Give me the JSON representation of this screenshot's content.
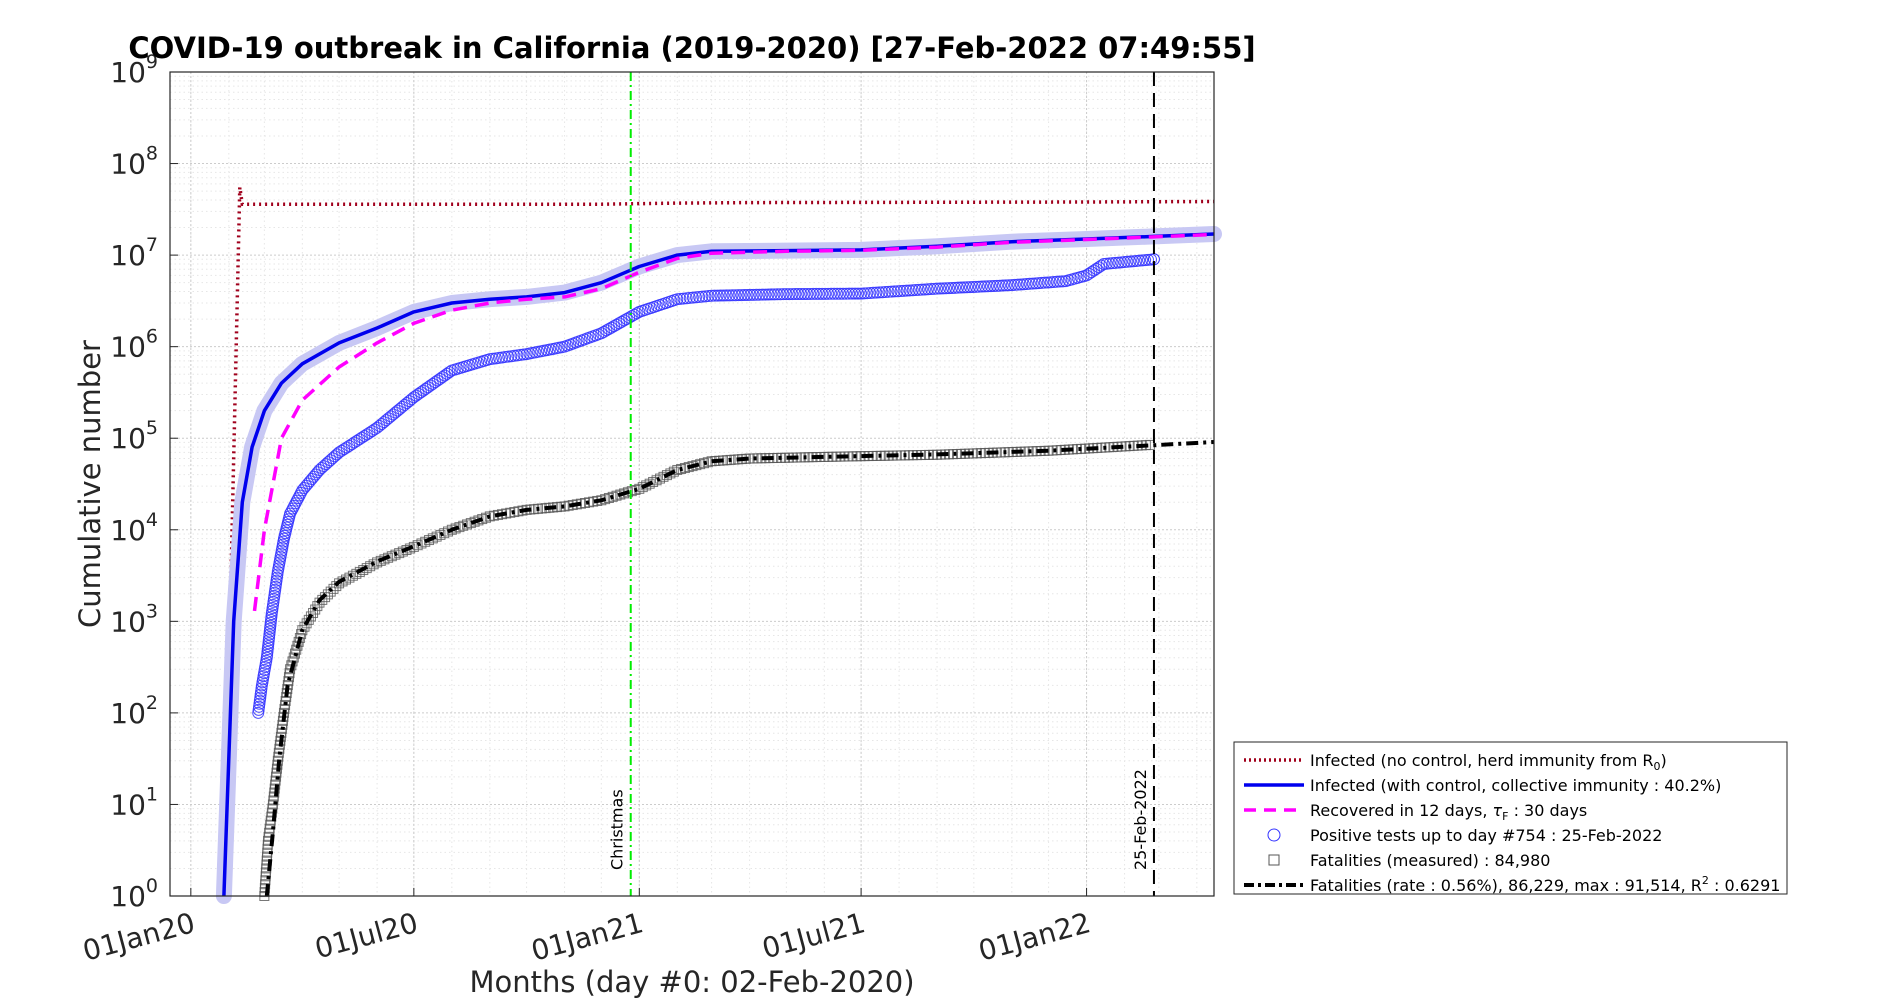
{
  "chart_data": {
    "type": "line",
    "title": "COVID-19 outbreak in California (2019-2020) [27-Feb-2022 07:49:55]",
    "xlabel": "Months (day #0: 02-Feb-2020)",
    "ylabel": "Cumulative number",
    "yscale": "log",
    "ylim": [
      1,
      1000000000
    ],
    "xlim": [
      "2019-12-15",
      "2022-04-15"
    ],
    "x_ticks": [
      {
        "date": "2020-01-01",
        "label": "01Jan20"
      },
      {
        "date": "2020-07-01",
        "label": "01Jul20"
      },
      {
        "date": "2021-01-01",
        "label": "01Jan21"
      },
      {
        "date": "2021-07-01",
        "label": "01Jul21"
      },
      {
        "date": "2022-01-01",
        "label": "01Jan22"
      }
    ],
    "y_ticks": [
      {
        "value": 1,
        "base": "10",
        "exp": "0"
      },
      {
        "value": 10,
        "base": "10",
        "exp": "1"
      },
      {
        "value": 100,
        "base": "10",
        "exp": "2"
      },
      {
        "value": 1000,
        "base": "10",
        "exp": "3"
      },
      {
        "value": 10000,
        "base": "10",
        "exp": "4"
      },
      {
        "value": 100000,
        "base": "10",
        "exp": "5"
      },
      {
        "value": 1000000,
        "base": "10",
        "exp": "6"
      },
      {
        "value": 10000000,
        "base": "10",
        "exp": "7"
      },
      {
        "value": 100000000,
        "base": "10",
        "exp": "8"
      },
      {
        "value": 1000000000,
        "base": "10",
        "exp": "9"
      }
    ],
    "grid": true,
    "legend_position": "bottom-right-outside",
    "vlines": [
      {
        "name": "christmas",
        "date": "2020-12-25",
        "label": "Christmas",
        "color": "#00ee00",
        "style": "dashdot"
      },
      {
        "name": "last-day",
        "date": "2022-02-25",
        "label": "25-Feb-2022",
        "color": "#000000",
        "style": "dashed"
      }
    ],
    "series": [
      {
        "key": "no_control",
        "legend": {
          "pre": "Infected (no control, herd immunity from R",
          "sub": "0",
          "post": ")"
        },
        "color": "#a0001c",
        "style": "dotted",
        "points": [
          [
            "2020-02-02",
            1000
          ],
          [
            "2020-02-10",
            55000000
          ],
          [
            "2020-02-12",
            36000000
          ],
          [
            "2020-12-01",
            36000000
          ],
          [
            "2021-02-01",
            37000000
          ],
          [
            "2021-04-01",
            37500000
          ],
          [
            "2022-01-01",
            38000000
          ],
          [
            "2022-04-15",
            38500000
          ]
        ]
      },
      {
        "key": "with_control",
        "legend": {
          "pre": "Infected (with control, collective immunity : 40.2%)"
        },
        "color": "#0000ee",
        "style": "solid",
        "points": [
          [
            "2020-01-28",
            1
          ],
          [
            "2020-02-05",
            1000
          ],
          [
            "2020-02-12",
            20000
          ],
          [
            "2020-02-20",
            80000
          ],
          [
            "2020-03-01",
            200000
          ],
          [
            "2020-03-15",
            400000
          ],
          [
            "2020-04-01",
            650000
          ],
          [
            "2020-05-01",
            1100000
          ],
          [
            "2020-06-01",
            1600000
          ],
          [
            "2020-07-01",
            2400000
          ],
          [
            "2020-08-01",
            3000000
          ],
          [
            "2020-09-01",
            3300000
          ],
          [
            "2020-10-01",
            3500000
          ],
          [
            "2020-11-01",
            3900000
          ],
          [
            "2020-12-01",
            5000000
          ],
          [
            "2021-01-01",
            7500000
          ],
          [
            "2021-02-01",
            10000000
          ],
          [
            "2021-03-01",
            11000000
          ],
          [
            "2021-05-01",
            11200000
          ],
          [
            "2021-07-01",
            11400000
          ],
          [
            "2021-09-01",
            12500000
          ],
          [
            "2021-11-01",
            14000000
          ],
          [
            "2022-01-01",
            15000000
          ],
          [
            "2022-02-25",
            16000000
          ],
          [
            "2022-04-15",
            17000000
          ]
        ]
      },
      {
        "key": "recovered",
        "legend": {
          "pre": "Recovered in 12 days, ",
          "tau": "τ",
          "sub": "F",
          "post": " : 30 days"
        },
        "color": "#ff00ff",
        "style": "dashed",
        "points": [
          [
            "2020-02-22",
            1300
          ],
          [
            "2020-03-01",
            10000
          ],
          [
            "2020-03-15",
            100000
          ],
          [
            "2020-04-01",
            260000
          ],
          [
            "2020-05-01",
            600000
          ],
          [
            "2020-06-01",
            1100000
          ],
          [
            "2020-07-01",
            1800000
          ],
          [
            "2020-08-01",
            2500000
          ],
          [
            "2020-09-01",
            3000000
          ],
          [
            "2020-10-01",
            3300000
          ],
          [
            "2020-11-01",
            3500000
          ],
          [
            "2020-12-01",
            4300000
          ],
          [
            "2021-01-01",
            6500000
          ],
          [
            "2021-02-01",
            9200000
          ],
          [
            "2021-03-01",
            10500000
          ],
          [
            "2021-05-01",
            11000000
          ],
          [
            "2021-07-01",
            11300000
          ],
          [
            "2021-09-01",
            12200000
          ],
          [
            "2021-11-01",
            13800000
          ],
          [
            "2022-01-01",
            14800000
          ],
          [
            "2022-02-25",
            15800000
          ],
          [
            "2022-04-15",
            16800000
          ]
        ]
      },
      {
        "key": "positive_tests",
        "legend": {
          "pre": "Positive tests up to day #754 : 25-Feb-2022"
        },
        "color": "#3333ff",
        "style": "marker-circle",
        "points": [
          [
            "2020-02-25",
            100
          ],
          [
            "2020-02-28",
            200
          ],
          [
            "2020-03-03",
            400
          ],
          [
            "2020-03-07",
            1200
          ],
          [
            "2020-03-12",
            3500
          ],
          [
            "2020-03-17",
            8000
          ],
          [
            "2020-03-22",
            15000
          ],
          [
            "2020-04-01",
            27000
          ],
          [
            "2020-04-15",
            45000
          ],
          [
            "2020-05-01",
            70000
          ],
          [
            "2020-06-01",
            130000
          ],
          [
            "2020-07-01",
            280000
          ],
          [
            "2020-08-01",
            550000
          ],
          [
            "2020-09-01",
            730000
          ],
          [
            "2020-10-01",
            830000
          ],
          [
            "2020-11-01",
            1000000
          ],
          [
            "2020-12-01",
            1400000
          ],
          [
            "2021-01-01",
            2400000
          ],
          [
            "2021-02-01",
            3300000
          ],
          [
            "2021-03-01",
            3600000
          ],
          [
            "2021-05-01",
            3750000
          ],
          [
            "2021-07-01",
            3800000
          ],
          [
            "2021-09-01",
            4300000
          ],
          [
            "2021-11-01",
            4700000
          ],
          [
            "2021-12-15",
            5200000
          ],
          [
            "2022-01-01",
            6000000
          ],
          [
            "2022-01-15",
            8000000
          ],
          [
            "2022-02-25",
            9000000
          ]
        ]
      },
      {
        "key": "fatalities_measured",
        "legend": {
          "pre": "Fatalities (measured) : 84,980"
        },
        "color": "#555555",
        "style": "marker-square",
        "points": [
          [
            "2020-03-01",
            1
          ],
          [
            "2020-03-04",
            4
          ],
          [
            "2020-03-08",
            10
          ],
          [
            "2020-03-12",
            30
          ],
          [
            "2020-03-17",
            100
          ],
          [
            "2020-03-22",
            300
          ],
          [
            "2020-04-01",
            800
          ],
          [
            "2020-04-15",
            1600
          ],
          [
            "2020-05-01",
            2600
          ],
          [
            "2020-06-01",
            4400
          ],
          [
            "2020-07-01",
            6500
          ],
          [
            "2020-08-01",
            10000
          ],
          [
            "2020-09-01",
            14000
          ],
          [
            "2020-10-01",
            16500
          ],
          [
            "2020-11-01",
            18000
          ],
          [
            "2020-12-01",
            21000
          ],
          [
            "2021-01-01",
            28000
          ],
          [
            "2021-02-01",
            45000
          ],
          [
            "2021-03-01",
            56000
          ],
          [
            "2021-04-01",
            60000
          ],
          [
            "2021-06-01",
            62500
          ],
          [
            "2021-09-01",
            66000
          ],
          [
            "2021-12-01",
            73000
          ],
          [
            "2022-02-25",
            84980
          ]
        ]
      },
      {
        "key": "fatalities_fit",
        "legend": {
          "pre": "Fatalities (rate : 0.56%), 86,229, max : 91,514, R",
          "sup": "2",
          "post": " : 0.6291"
        },
        "color": "#000000",
        "style": "dashdot-thick",
        "points": [
          [
            "2020-03-03",
            1
          ],
          [
            "2020-03-08",
            5
          ],
          [
            "2020-03-13",
            30
          ],
          [
            "2020-03-20",
            200
          ],
          [
            "2020-04-01",
            800
          ],
          [
            "2020-04-15",
            1700
          ],
          [
            "2020-05-01",
            2700
          ],
          [
            "2020-06-01",
            4500
          ],
          [
            "2020-07-01",
            6600
          ],
          [
            "2020-08-01",
            10000
          ],
          [
            "2020-09-01",
            14000
          ],
          [
            "2020-10-01",
            16500
          ],
          [
            "2020-11-01",
            18000
          ],
          [
            "2020-12-01",
            21000
          ],
          [
            "2021-01-01",
            28000
          ],
          [
            "2021-02-01",
            45000
          ],
          [
            "2021-03-01",
            56000
          ],
          [
            "2021-04-01",
            60000
          ],
          [
            "2021-06-01",
            62500
          ],
          [
            "2021-09-01",
            66500
          ],
          [
            "2021-12-01",
            73000
          ],
          [
            "2022-02-25",
            84000
          ],
          [
            "2022-04-15",
            91000
          ]
        ]
      }
    ]
  }
}
